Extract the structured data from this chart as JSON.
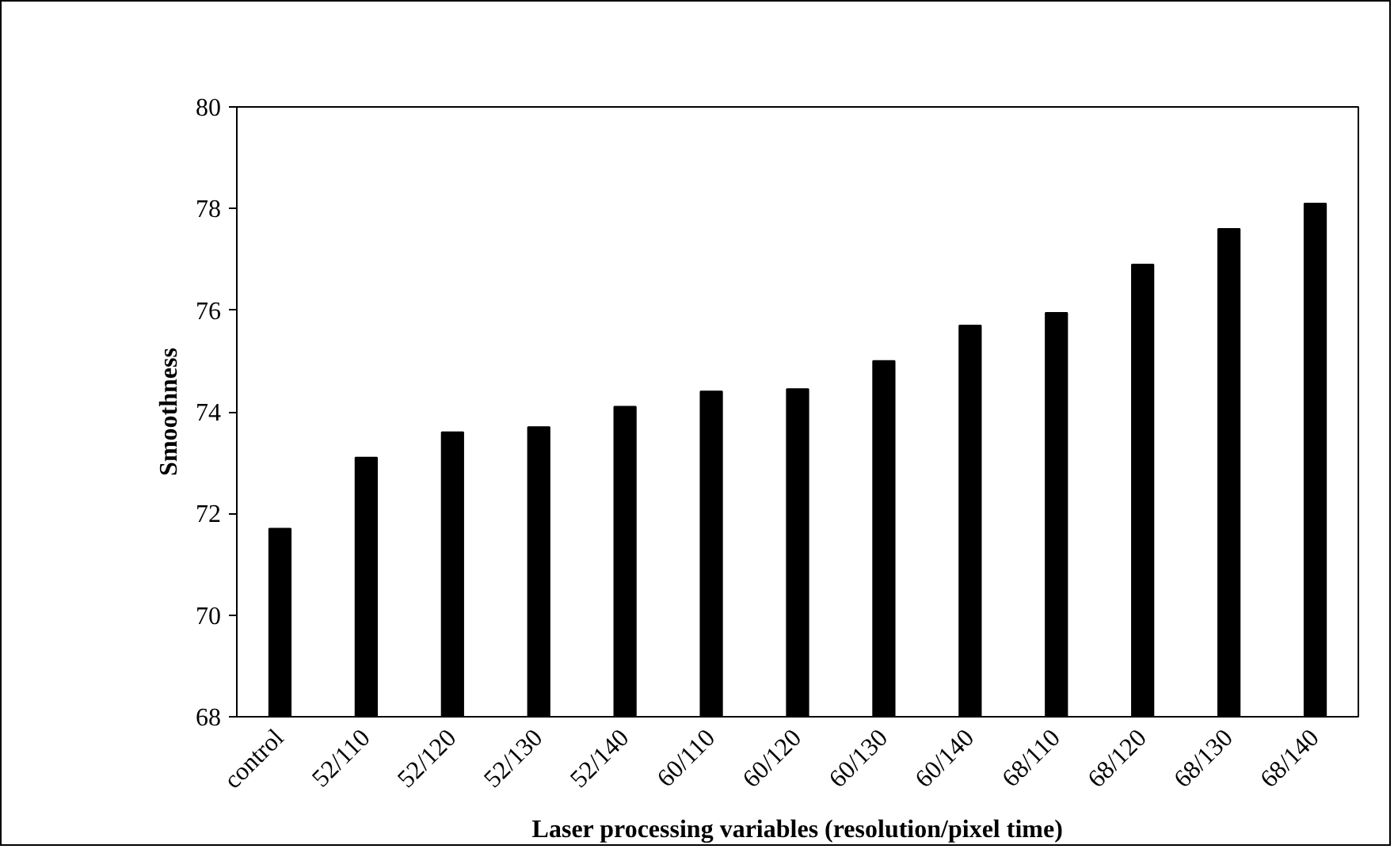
{
  "chart_data": {
    "type": "bar",
    "xlabel": "Laser processing variables (resolution/pixel time)",
    "ylabel": "Smoothness",
    "categories": [
      "control",
      "52/110",
      "52/120",
      "52/130",
      "52/140",
      "60/110",
      "60/120",
      "60/130",
      "60/140",
      "68/110",
      "68/120",
      "68/130",
      "68/140"
    ],
    "values": [
      71.7,
      73.1,
      73.6,
      73.7,
      74.1,
      74.4,
      74.45,
      75.0,
      75.7,
      75.95,
      76.9,
      77.6,
      78.1
    ],
    "color": "#000000",
    "ylim": [
      68,
      80
    ],
    "yticks": [
      68,
      70,
      72,
      74,
      76,
      78,
      80
    ]
  }
}
